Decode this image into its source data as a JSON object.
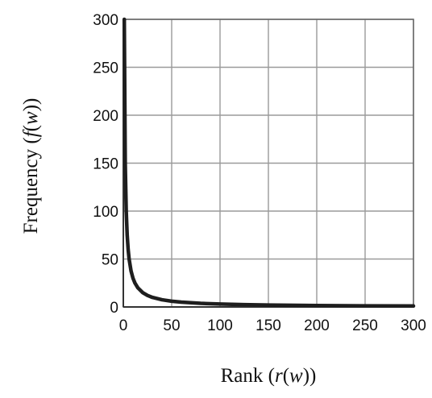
{
  "chart_data": {
    "type": "line",
    "title": "",
    "xlabel": "Rank (r(w))",
    "xlabel_parts": [
      "Rank (",
      "r",
      "(",
      "w",
      "))"
    ],
    "ylabel": "Frequency (f(w))",
    "ylabel_parts": [
      "Frequency (",
      "f",
      "(",
      "w",
      "))"
    ],
    "xlim": [
      0,
      300
    ],
    "ylim": [
      0,
      300
    ],
    "xticks": [
      0,
      50,
      100,
      150,
      200,
      250,
      300
    ],
    "yticks": [
      0,
      50,
      100,
      150,
      200,
      250,
      300
    ],
    "grid": true,
    "legend": "none",
    "series": [
      {
        "color": "#1e1e1e",
        "x": [
          1,
          2,
          3,
          4,
          5,
          6,
          8,
          10,
          12,
          15,
          20,
          25,
          30,
          40,
          50,
          60,
          80,
          100,
          125,
          150,
          200,
          250,
          300
        ],
        "y": [
          300,
          150,
          100,
          75,
          60,
          50,
          37.5,
          30,
          25,
          20,
          15,
          12,
          10,
          7.5,
          6,
          5,
          3.75,
          3,
          2.4,
          2,
          1.5,
          1.2,
          1
        ]
      }
    ]
  }
}
